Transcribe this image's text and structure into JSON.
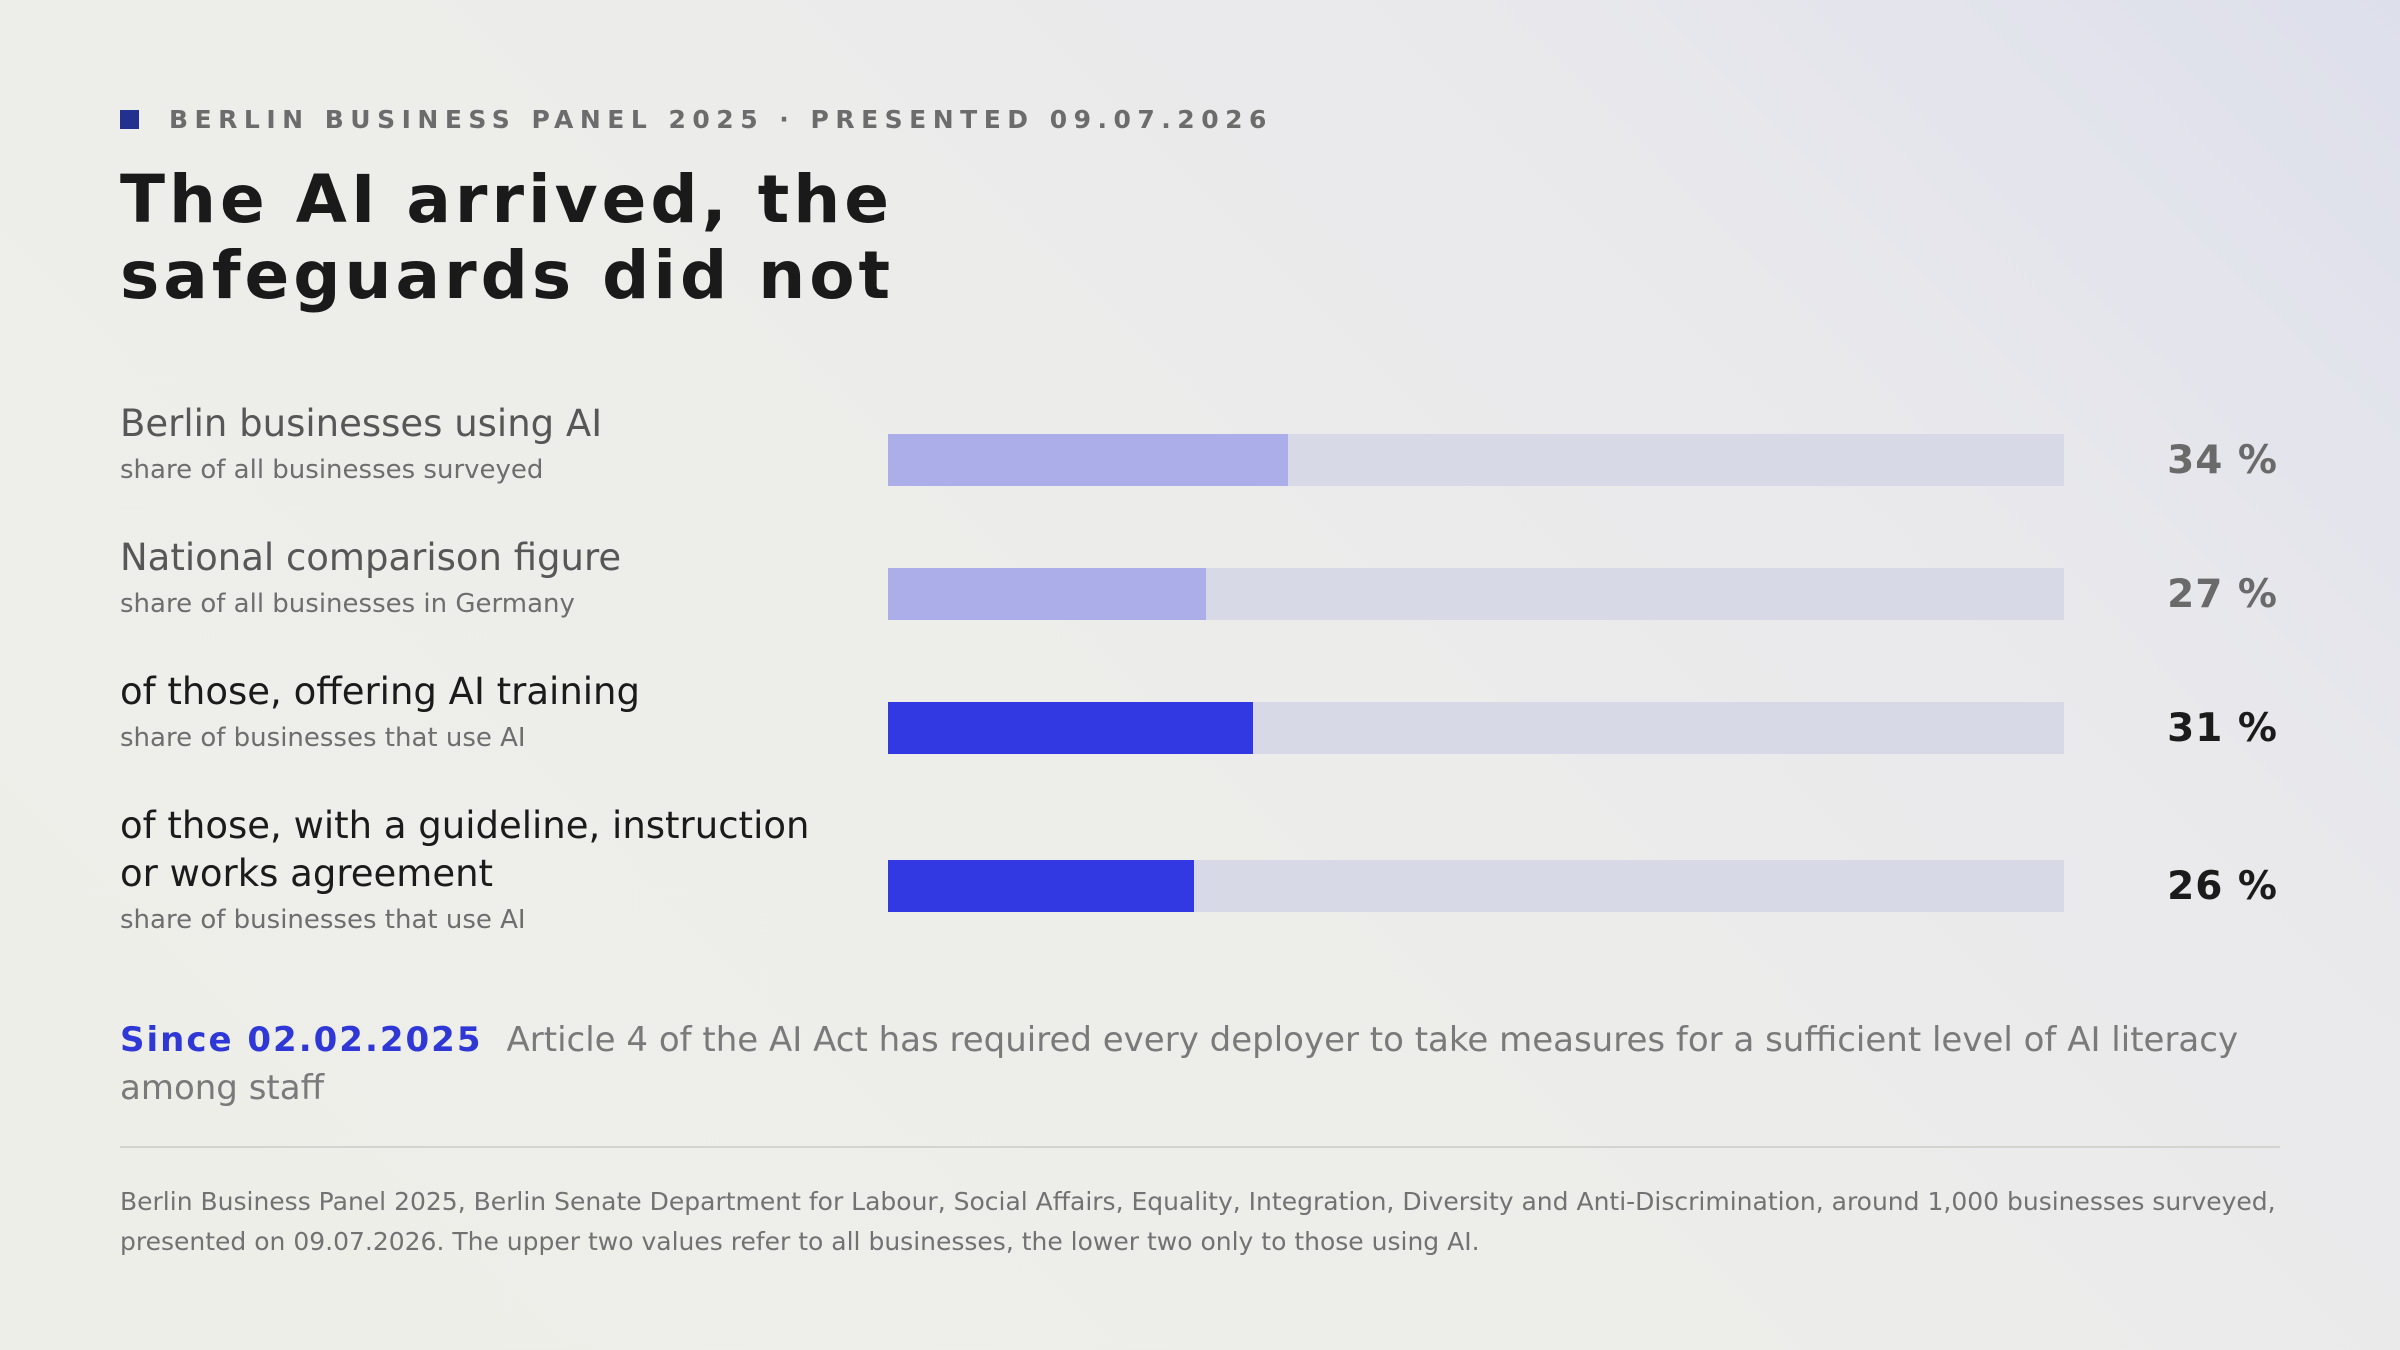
{
  "header": {
    "eyebrow": "BERLIN BUSINESS PANEL 2025 · PRESENTED 09.07.2026",
    "title_line1": "The AI arrived, the",
    "title_line2": "safeguards did not"
  },
  "colors": {
    "accent": "#3239e3",
    "context_bar": "#abaee8",
    "track": "#d8d9e7",
    "eyebrow_mark": "#223190"
  },
  "chart_data": {
    "type": "bar",
    "orientation": "horizontal",
    "xlim": [
      0,
      100
    ],
    "unit": "%",
    "bars": [
      {
        "label": "Berlin businesses using AI",
        "sublabel": "share of all businesses surveyed",
        "value": 34,
        "value_label": "34 %",
        "emphasis": "context"
      },
      {
        "label": "National comparison figure",
        "sublabel": "share of all businesses in Germany",
        "value": 27,
        "value_label": "27 %",
        "emphasis": "context"
      },
      {
        "label": "of those, offering AI training",
        "sublabel": "share of businesses that use AI",
        "value": 31,
        "value_label": "31 %",
        "emphasis": "focus"
      },
      {
        "label": "of those, with a guideline, instruction or works agreement",
        "sublabel": "share of businesses that use AI",
        "value": 26,
        "value_label": "26 %",
        "emphasis": "focus"
      }
    ]
  },
  "note": {
    "date": "Since 02.02.2025",
    "text": "Article 4 of the AI Act has required every deployer to take measures for a sufficient level of AI literacy among staff"
  },
  "source": {
    "text": "Berlin Business Panel 2025, Berlin Senate Department for Labour, Social Affairs, Equality, Integration, Diversity and Anti-Discrimination, around 1,000 businesses surveyed, presented on 09.07.2026. The upper two values refer to all businesses, the lower two only to those using AI."
  }
}
